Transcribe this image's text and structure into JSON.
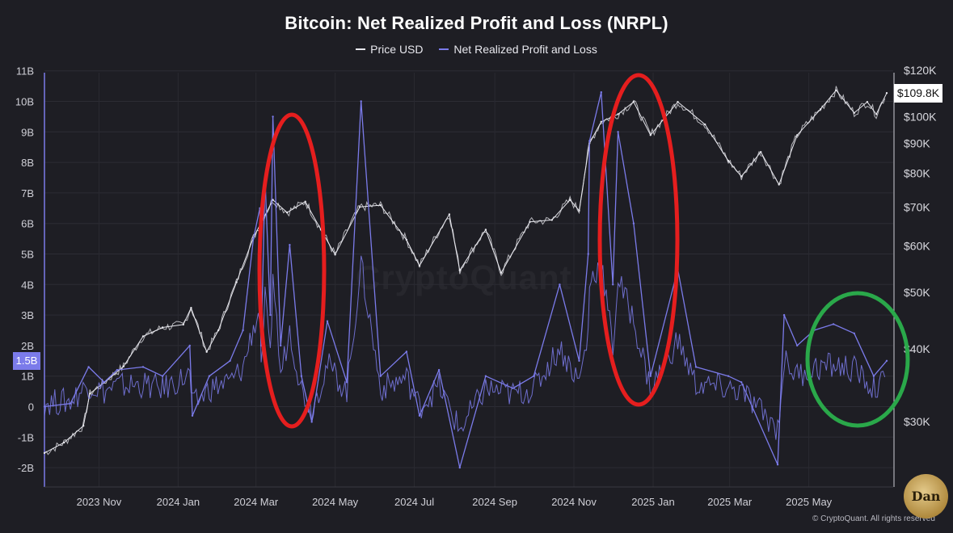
{
  "chart_data": {
    "type": "line",
    "title": "Bitcoin: Net Realized Profit and Loss (NRPL)",
    "legend": [
      "Price USD",
      "Net Realized Profit and Loss"
    ],
    "legend_position": "top-center",
    "x_ticks": [
      "2023 Nov",
      "2024 Jan",
      "2024 Mar",
      "2024 May",
      "2024 Jul",
      "2024 Sep",
      "2024 Nov",
      "2025 Jan",
      "2025 Mar",
      "2025 May"
    ],
    "y_left_ticks": [
      "11B",
      "10B",
      "9B",
      "8B",
      "7B",
      "6B",
      "5B",
      "4B",
      "3B",
      "2B",
      "1B",
      "0",
      "-1B",
      "-2B"
    ],
    "y_right_ticks": [
      "$120K",
      "$100K",
      "$90K",
      "$80K",
      "$70K",
      "$60K",
      "$50K",
      "$40K",
      "$30K"
    ],
    "y_left_range": [
      -2,
      11
    ],
    "y_right_scale": "log",
    "y_right_range": [
      27000,
      120000
    ],
    "current_nrpl_label": "1.5B",
    "current_price_label": "$109.8K",
    "series": [
      {
        "name": "Price USD",
        "axis": "right",
        "color": "#e8e8ee",
        "points": [
          [
            "2023-09-20",
            26500
          ],
          [
            "2023-10-05",
            27600
          ],
          [
            "2023-10-20",
            29500
          ],
          [
            "2023-10-25",
            33500
          ],
          [
            "2023-11-05",
            35000
          ],
          [
            "2023-11-20",
            37300
          ],
          [
            "2023-12-05",
            42000
          ],
          [
            "2023-12-20",
            43500
          ],
          [
            "2024-01-05",
            44000
          ],
          [
            "2024-01-11",
            47000
          ],
          [
            "2024-01-23",
            39500
          ],
          [
            "2024-02-01",
            43000
          ],
          [
            "2024-02-15",
            52000
          ],
          [
            "2024-02-28",
            62000
          ],
          [
            "2024-03-14",
            72000
          ],
          [
            "2024-03-25",
            68500
          ],
          [
            "2024-04-08",
            71500
          ],
          [
            "2024-04-20",
            64000
          ],
          [
            "2024-05-01",
            58000
          ],
          [
            "2024-05-20",
            70000
          ],
          [
            "2024-06-05",
            70500
          ],
          [
            "2024-06-25",
            61500
          ],
          [
            "2024-07-05",
            55500
          ],
          [
            "2024-07-28",
            68000
          ],
          [
            "2024-08-05",
            54500
          ],
          [
            "2024-08-25",
            64000
          ],
          [
            "2024-09-06",
            54000
          ],
          [
            "2024-09-28",
            66000
          ],
          [
            "2024-10-15",
            66500
          ],
          [
            "2024-10-29",
            72000
          ],
          [
            "2024-11-05",
            69000
          ],
          [
            "2024-11-13",
            90000
          ],
          [
            "2024-11-22",
            98000
          ],
          [
            "2024-12-05",
            101000
          ],
          [
            "2024-12-17",
            106000
          ],
          [
            "2024-12-30",
            93000
          ],
          [
            "2025-01-20",
            106000
          ],
          [
            "2025-02-10",
            97000
          ],
          [
            "2025-02-28",
            84000
          ],
          [
            "2025-03-10",
            79000
          ],
          [
            "2025-03-25",
            87000
          ],
          [
            "2025-04-08",
            76500
          ],
          [
            "2025-04-22",
            93000
          ],
          [
            "2025-05-10",
            103000
          ],
          [
            "2025-05-22",
            111000
          ],
          [
            "2025-06-05",
            101500
          ],
          [
            "2025-06-15",
            106000
          ],
          [
            "2025-06-22",
            101000
          ],
          [
            "2025-06-30",
            109800
          ]
        ]
      },
      {
        "name": "Net Realized Profit and Loss",
        "axis": "left",
        "color": "#7b7bea",
        "points": [
          [
            "2023-09-20",
            0.0
          ],
          [
            "2023-10-10",
            0.1
          ],
          [
            "2023-10-24",
            1.3
          ],
          [
            "2023-11-05",
            0.8
          ],
          [
            "2023-11-15",
            1.2
          ],
          [
            "2023-12-05",
            1.3
          ],
          [
            "2023-12-20",
            1.0
          ],
          [
            "2024-01-10",
            2.0
          ],
          [
            "2024-01-12",
            -0.3
          ],
          [
            "2024-01-25",
            1.0
          ],
          [
            "2024-02-10",
            1.5
          ],
          [
            "2024-02-20",
            2.5
          ],
          [
            "2024-02-28",
            5.5
          ],
          [
            "2024-03-04",
            6.5
          ],
          [
            "2024-03-05",
            2.0
          ],
          [
            "2024-03-08",
            7.5
          ],
          [
            "2024-03-12",
            3.0
          ],
          [
            "2024-03-14",
            9.5
          ],
          [
            "2024-03-20",
            2.0
          ],
          [
            "2024-03-27",
            5.3
          ],
          [
            "2024-04-05",
            1.0
          ],
          [
            "2024-04-13",
            -0.5
          ],
          [
            "2024-04-25",
            2.8
          ],
          [
            "2024-05-10",
            0.8
          ],
          [
            "2024-05-21",
            10.0
          ],
          [
            "2024-06-05",
            1.0
          ],
          [
            "2024-06-25",
            1.8
          ],
          [
            "2024-07-05",
            -0.3
          ],
          [
            "2024-07-20",
            1.2
          ],
          [
            "2024-08-05",
            -2.0
          ],
          [
            "2024-08-25",
            1.0
          ],
          [
            "2024-09-15",
            0.6
          ],
          [
            "2024-10-01",
            1.0
          ],
          [
            "2024-10-21",
            4.0
          ],
          [
            "2024-11-05",
            1.5
          ],
          [
            "2024-11-12",
            5.0
          ],
          [
            "2024-11-13",
            8.7
          ],
          [
            "2024-11-22",
            10.3
          ],
          [
            "2024-12-01",
            4.0
          ],
          [
            "2024-12-05",
            9.0
          ],
          [
            "2024-12-17",
            6.0
          ],
          [
            "2024-12-30",
            1.0
          ],
          [
            "2025-01-20",
            4.5
          ],
          [
            "2025-02-03",
            1.3
          ],
          [
            "2025-02-28",
            1.0
          ],
          [
            "2025-03-10",
            0.8
          ],
          [
            "2025-04-07",
            -1.9
          ],
          [
            "2025-04-12",
            3.0
          ],
          [
            "2025-04-22",
            2.0
          ],
          [
            "2025-05-05",
            2.5
          ],
          [
            "2025-05-20",
            2.7
          ],
          [
            "2025-06-05",
            2.4
          ],
          [
            "2025-06-20",
            1.0
          ],
          [
            "2025-06-30",
            1.5
          ]
        ]
      }
    ],
    "annotations": [
      {
        "shape": "ellipse",
        "color": "#e51e1e",
        "around": "2024 Mar spikes"
      },
      {
        "shape": "ellipse",
        "color": "#e51e1e",
        "around": "2024 Nov–Dec spikes"
      },
      {
        "shape": "ellipse",
        "color": "#2aa84a",
        "around": "2025 May cluster"
      }
    ],
    "grid": true
  },
  "watermark": "CryptoQuant",
  "copyright": "© CryptoQuant. All rights reserved",
  "avatar_text": "Dan"
}
